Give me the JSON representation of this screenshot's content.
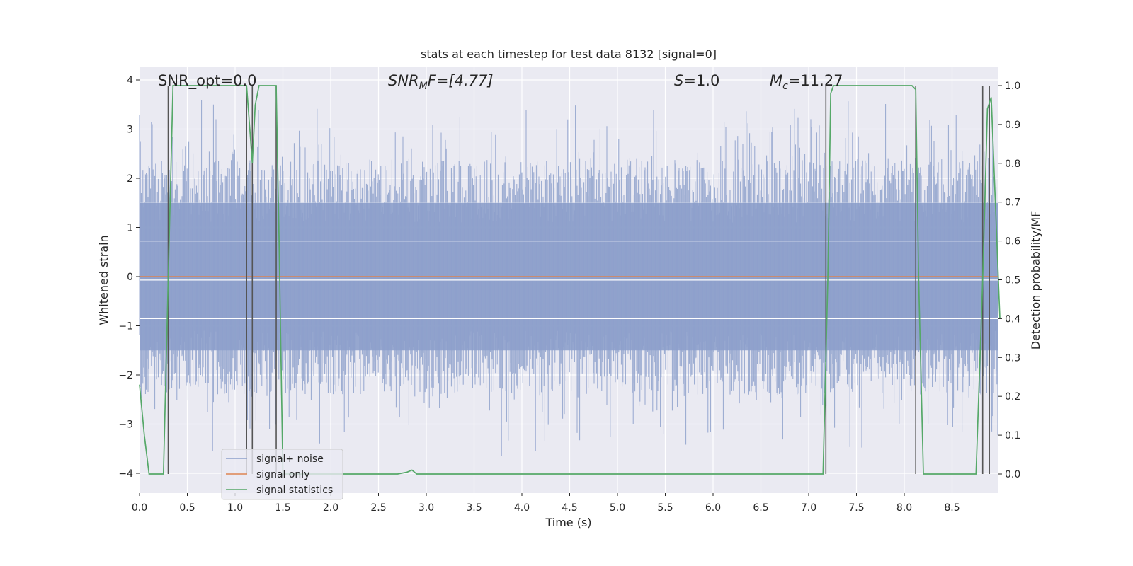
{
  "chart_data": {
    "type": "line",
    "title": "stats at each timestep for test data 8132 [signal=0]",
    "xlabel": "Time (s)",
    "ylabel": "Whitened strain",
    "ylabel_right": "Detection probability/MF",
    "xlim": [
      0,
      9.0
    ],
    "ylim": [
      -4.4,
      4.3
    ],
    "ylim_right": [
      -0.05,
      1.03
    ],
    "xticks": [
      0.0,
      0.5,
      1.0,
      1.5,
      2.0,
      2.5,
      3.0,
      3.5,
      4.0,
      4.5,
      5.0,
      5.5,
      6.0,
      6.5,
      7.0,
      7.5,
      8.0,
      8.5
    ],
    "xtick_labels": [
      "0.0",
      "0.5",
      "1.0",
      "1.5",
      "2.0",
      "2.5",
      "3.0",
      "3.5",
      "4.0",
      "4.5",
      "5.0",
      "5.5",
      "6.0",
      "6.5",
      "7.0",
      "7.5",
      "8.0",
      "8.5"
    ],
    "yticks": [
      4,
      3,
      2,
      1,
      0,
      -1,
      -2,
      -3,
      -4
    ],
    "ytick_labels": [
      "4",
      "3",
      "2",
      "1",
      "0",
      "−1",
      "−2",
      "−3",
      "−4"
    ],
    "yticks_right": [
      1.0,
      0.9,
      0.8,
      0.7,
      0.6,
      0.5,
      0.4,
      0.3,
      0.2,
      0.1,
      0.0
    ],
    "ytick_labels_right": [
      "1.0",
      "0.9",
      "0.8",
      "0.7",
      "0.6",
      "0.5",
      "0.4",
      "0.3",
      "0.2",
      "0.1",
      "0.0"
    ],
    "right_gridlines": [
      0.7,
      0.6,
      0.4
    ],
    "annotations": {
      "snr_opt": "SNR_opt=0.0",
      "snr_mf_sym": "SNR",
      "snr_mf_sub": "M",
      "snr_mf_rest": "F=[4.77]",
      "s_sym": "S",
      "s_rest": "=1.0",
      "mc_sym": "M",
      "mc_sub": "c",
      "mc_rest": "=11.27"
    },
    "series": [
      {
        "name": "signal+ noise",
        "color": "#8da0cb",
        "amplitude_core": 1.5,
        "amplitude_peak": 3.9,
        "seed": 8132
      },
      {
        "name": "signal only",
        "color": "#dd8452",
        "value": 0.0
      },
      {
        "name": "signal statistics",
        "color": "#55a868",
        "x": [
          0.0,
          0.05,
          0.1,
          0.2,
          0.25,
          0.3,
          0.35,
          0.37,
          0.5,
          0.7,
          0.9,
          1.0,
          1.1,
          1.12,
          1.15,
          1.18,
          1.21,
          1.25,
          1.4,
          1.43,
          1.46,
          1.5,
          2.0,
          2.5,
          2.7,
          2.8,
          2.85,
          2.9,
          3.0,
          3.5,
          4.0,
          5.0,
          6.0,
          7.0,
          7.15,
          7.2,
          7.23,
          7.26,
          7.5,
          8.0,
          8.08,
          8.12,
          8.15,
          8.2,
          8.5,
          8.75,
          8.82,
          8.87,
          8.91,
          9.0
        ],
        "y": [
          0.23,
          0.1,
          0.0,
          0.0,
          0.0,
          0.5,
          1.0,
          1.0,
          1.0,
          1.0,
          1.0,
          1.0,
          1.0,
          1.0,
          0.9,
          0.8,
          0.95,
          1.0,
          1.0,
          1.0,
          0.6,
          0.0,
          0.0,
          0.0,
          0.0,
          0.005,
          0.01,
          0.0,
          0.0,
          0.0,
          0.0,
          0.0,
          0.0,
          0.0,
          0.0,
          0.5,
          0.98,
          1.0,
          1.0,
          1.0,
          1.0,
          0.99,
          0.5,
          0.0,
          0.0,
          0.0,
          0.5,
          0.94,
          0.97,
          0.4
        ]
      },
      {
        "name": "marker lines",
        "color": "#555555",
        "x": [
          0.3,
          1.12,
          1.18,
          1.43,
          7.18,
          8.12,
          8.82,
          8.89
        ]
      }
    ],
    "legend": {
      "position": "lower-left",
      "entries": [
        "signal+ noise",
        "signal only",
        "signal statistics"
      ]
    }
  }
}
